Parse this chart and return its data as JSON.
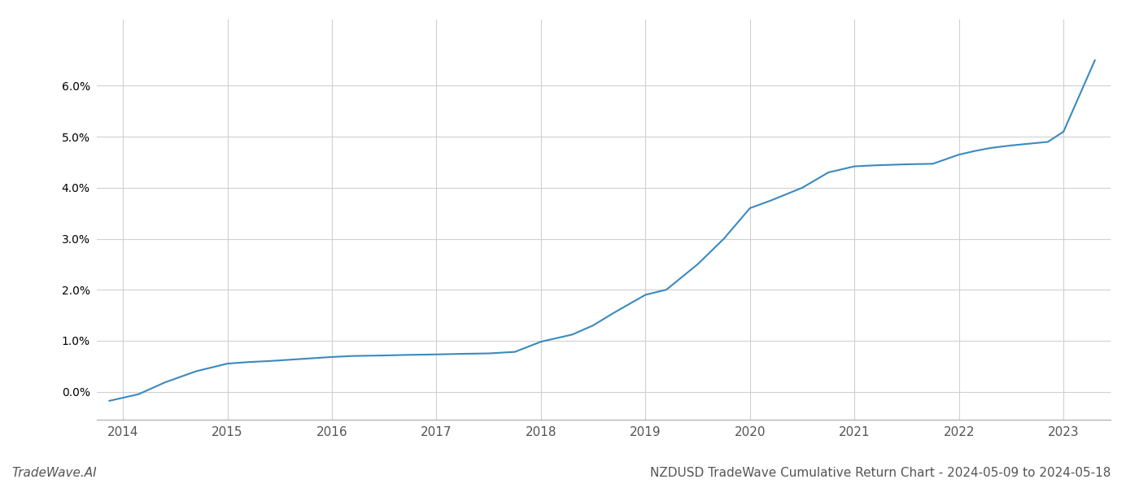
{
  "x_years": [
    2013.87,
    2014.0,
    2014.15,
    2014.4,
    2014.7,
    2015.0,
    2015.2,
    2015.4,
    2015.7,
    2016.0,
    2016.2,
    2016.5,
    2016.7,
    2017.0,
    2017.2,
    2017.5,
    2017.75,
    2018.0,
    2018.15,
    2018.3,
    2018.5,
    2018.7,
    2019.0,
    2019.2,
    2019.5,
    2019.75,
    2020.0,
    2020.2,
    2020.5,
    2020.75,
    2021.0,
    2021.2,
    2021.5,
    2021.75,
    2022.0,
    2022.15,
    2022.3,
    2022.5,
    2022.7,
    2022.85,
    2023.0,
    2023.15,
    2023.3
  ],
  "y_values": [
    -0.18,
    -0.12,
    -0.05,
    0.18,
    0.4,
    0.55,
    0.58,
    0.6,
    0.64,
    0.68,
    0.7,
    0.71,
    0.72,
    0.73,
    0.74,
    0.75,
    0.78,
    0.98,
    1.05,
    1.12,
    1.3,
    1.55,
    1.9,
    2.0,
    2.5,
    3.0,
    3.6,
    3.75,
    4.0,
    4.3,
    4.42,
    4.44,
    4.46,
    4.47,
    4.65,
    4.72,
    4.78,
    4.83,
    4.87,
    4.9,
    5.1,
    5.8,
    6.5
  ],
  "line_color": "#3a8abf",
  "line_width": 1.5,
  "background_color": "#ffffff",
  "grid_color": "#d0d0d0",
  "title_text": "NZDUSD TradeWave Cumulative Return Chart - 2024-05-09 to 2024-05-18",
  "watermark_text": "TradeWave.AI",
  "x_tick_labels": [
    "2014",
    "2015",
    "2016",
    "2017",
    "2018",
    "2019",
    "2020",
    "2021",
    "2022",
    "2023"
  ],
  "x_tick_positions": [
    2014,
    2015,
    2016,
    2017,
    2018,
    2019,
    2020,
    2021,
    2022,
    2023
  ],
  "y_min": -0.55,
  "y_max": 7.3,
  "y_ticks": [
    0.0,
    1.0,
    2.0,
    3.0,
    4.0,
    5.0,
    6.0
  ],
  "title_fontsize": 11,
  "watermark_fontsize": 11,
  "tick_fontsize": 11,
  "x_min": 2013.75,
  "x_max": 2023.45
}
